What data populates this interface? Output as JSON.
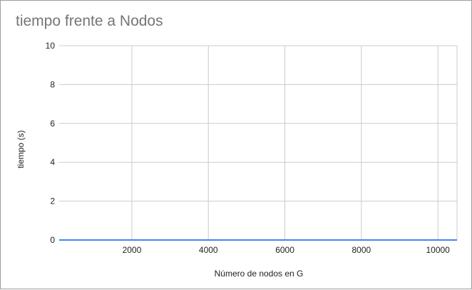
{
  "chart_data": {
    "type": "line",
    "title": "tiempo frente a Nodos",
    "xlabel": "Número de nodos en G",
    "ylabel": "tiempo (s)",
    "xlim": [
      100,
      10500
    ],
    "ylim": [
      0,
      10
    ],
    "x_ticks": [
      2000,
      4000,
      6000,
      8000,
      10000
    ],
    "y_ticks": [
      0,
      2,
      4,
      6,
      8,
      10
    ],
    "grid": true,
    "legend": "none",
    "series": [
      {
        "color": "#4285f4",
        "x": [
          100,
          1000,
          2000,
          3000,
          4000,
          5000,
          6000,
          7000,
          8000,
          9000,
          10000,
          10500
        ],
        "y": [
          0,
          0,
          0,
          0,
          0,
          0,
          0,
          0,
          0,
          0,
          0,
          0
        ]
      }
    ]
  },
  "colors": {
    "grid": "#cccccc",
    "series": "#4285f4",
    "title": "#757575"
  }
}
